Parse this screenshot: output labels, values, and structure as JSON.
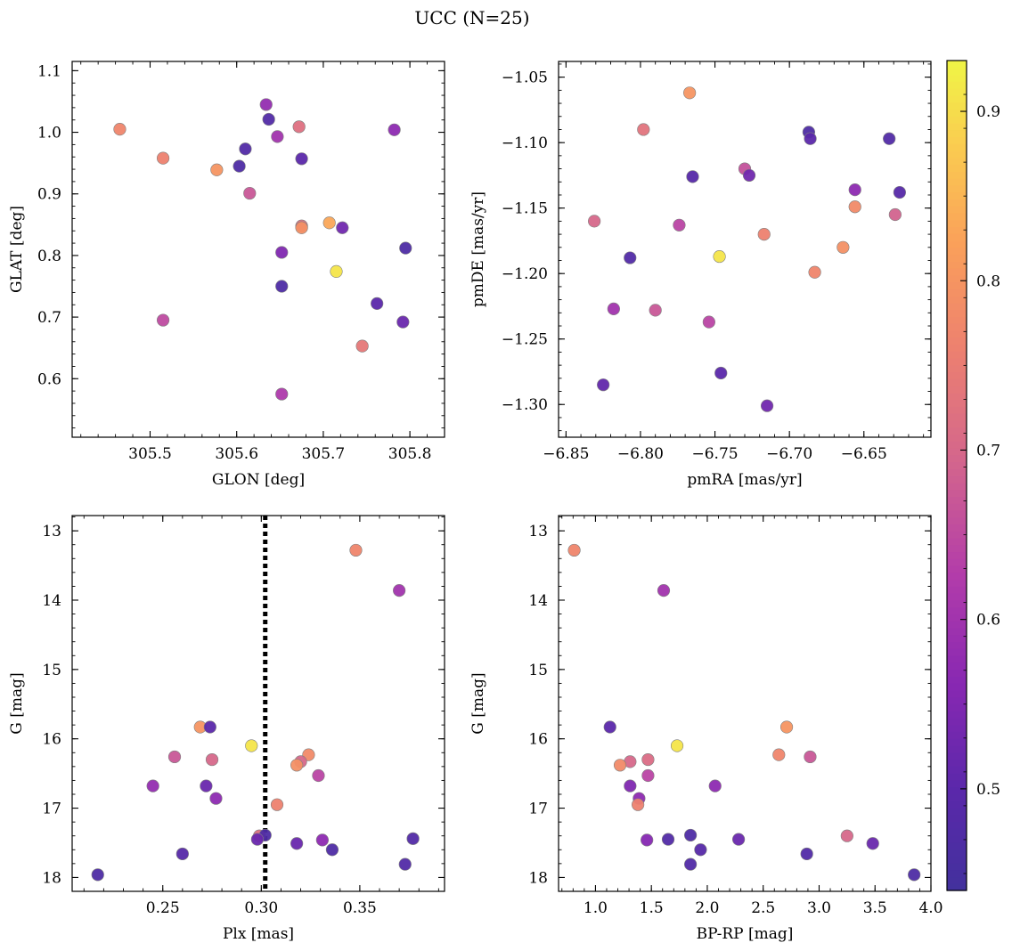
{
  "title": "UCC (N=25)",
  "colorbar": {
    "vmin": 0.44,
    "vmax": 0.93,
    "ticks": [
      0.5,
      0.6,
      0.7,
      0.8,
      0.9
    ],
    "tick_labels": [
      "0.5",
      "0.6",
      "0.7",
      "0.8",
      "0.9"
    ],
    "colormap": "plasma"
  },
  "chart_data": [
    {
      "type": "scatter",
      "xlabel": "GLON [deg]",
      "ylabel": "GLAT [deg]",
      "xlim": [
        305.41,
        305.84
      ],
      "ylim": [
        0.505,
        1.115
      ],
      "xticks": [
        305.5,
        305.6,
        305.7,
        305.8
      ],
      "xtick_labels": [
        "305.5",
        "305.6",
        "305.7",
        "305.8"
      ],
      "yticks": [
        0.6,
        0.7,
        0.8,
        0.9,
        1.0,
        1.1
      ],
      "ytick_labels": [
        "0.6",
        "0.7",
        "0.8",
        "0.9",
        "1.0",
        "1.1"
      ],
      "points": [
        {
          "x": 305.465,
          "y": 1.005,
          "c": 0.77
        },
        {
          "x": 305.515,
          "y": 0.958,
          "c": 0.76
        },
        {
          "x": 305.515,
          "y": 0.695,
          "c": 0.65
        },
        {
          "x": 305.577,
          "y": 0.939,
          "c": 0.8
        },
        {
          "x": 305.603,
          "y": 0.945,
          "c": 0.47
        },
        {
          "x": 305.61,
          "y": 0.973,
          "c": 0.48
        },
        {
          "x": 305.615,
          "y": 0.901,
          "c": 0.67
        },
        {
          "x": 305.634,
          "y": 1.045,
          "c": 0.58
        },
        {
          "x": 305.637,
          "y": 1.021,
          "c": 0.48
        },
        {
          "x": 305.647,
          "y": 0.993,
          "c": 0.6
        },
        {
          "x": 305.652,
          "y": 0.805,
          "c": 0.55
        },
        {
          "x": 305.652,
          "y": 0.75,
          "c": 0.47
        },
        {
          "x": 305.652,
          "y": 0.575,
          "c": 0.62
        },
        {
          "x": 305.672,
          "y": 1.009,
          "c": 0.72
        },
        {
          "x": 305.675,
          "y": 0.957,
          "c": 0.5
        },
        {
          "x": 305.675,
          "y": 0.848,
          "c": 0.72
        },
        {
          "x": 305.675,
          "y": 0.845,
          "c": 0.79
        },
        {
          "x": 305.707,
          "y": 0.853,
          "c": 0.83
        },
        {
          "x": 305.715,
          "y": 0.774,
          "c": 0.91
        },
        {
          "x": 305.722,
          "y": 0.845,
          "c": 0.53
        },
        {
          "x": 305.745,
          "y": 0.653,
          "c": 0.74
        },
        {
          "x": 305.762,
          "y": 0.722,
          "c": 0.5
        },
        {
          "x": 305.782,
          "y": 1.004,
          "c": 0.57
        },
        {
          "x": 305.792,
          "y": 0.692,
          "c": 0.52
        },
        {
          "x": 305.795,
          "y": 0.812,
          "c": 0.47
        }
      ]
    },
    {
      "type": "scatter",
      "xlabel": "pmRA [mas/yr]",
      "ylabel": "pmDE [mas/yr]",
      "xlim": [
        -6.855,
        -6.605
      ],
      "ylim": [
        -1.325,
        -1.038
      ],
      "xticks": [
        -6.85,
        -6.8,
        -6.75,
        -6.7,
        -6.65
      ],
      "xtick_labels": [
        "−6.85",
        "−6.80",
        "−6.75",
        "−6.70",
        "−6.65"
      ],
      "yticks": [
        -1.3,
        -1.25,
        -1.2,
        -1.15,
        -1.1,
        -1.05
      ],
      "ytick_labels": [
        "−1.30",
        "−1.25",
        "−1.20",
        "−1.15",
        "−1.10",
        "−1.05"
      ],
      "points": [
        {
          "x": -6.767,
          "y": -1.062,
          "c": 0.8
        },
        {
          "x": -6.798,
          "y": -1.09,
          "c": 0.73
        },
        {
          "x": -6.831,
          "y": -1.16,
          "c": 0.7
        },
        {
          "x": -6.807,
          "y": -1.188,
          "c": 0.48
        },
        {
          "x": -6.818,
          "y": -1.227,
          "c": 0.6
        },
        {
          "x": -6.825,
          "y": -1.285,
          "c": 0.51
        },
        {
          "x": -6.79,
          "y": -1.228,
          "c": 0.67
        },
        {
          "x": -6.774,
          "y": -1.163,
          "c": 0.64
        },
        {
          "x": -6.765,
          "y": -1.126,
          "c": 0.49
        },
        {
          "x": -6.754,
          "y": -1.237,
          "c": 0.64
        },
        {
          "x": -6.747,
          "y": -1.187,
          "c": 0.91
        },
        {
          "x": -6.746,
          "y": -1.276,
          "c": 0.5
        },
        {
          "x": -6.73,
          "y": -1.12,
          "c": 0.66
        },
        {
          "x": -6.727,
          "y": -1.125,
          "c": 0.53
        },
        {
          "x": -6.717,
          "y": -1.17,
          "c": 0.76
        },
        {
          "x": -6.715,
          "y": -1.301,
          "c": 0.53
        },
        {
          "x": -6.687,
          "y": -1.092,
          "c": 0.47
        },
        {
          "x": -6.686,
          "y": -1.097,
          "c": 0.5
        },
        {
          "x": -6.683,
          "y": -1.199,
          "c": 0.77
        },
        {
          "x": -6.664,
          "y": -1.18,
          "c": 0.79
        },
        {
          "x": -6.656,
          "y": -1.136,
          "c": 0.57
        },
        {
          "x": -6.656,
          "y": -1.149,
          "c": 0.78
        },
        {
          "x": -6.633,
          "y": -1.097,
          "c": 0.48
        },
        {
          "x": -6.629,
          "y": -1.155,
          "c": 0.69
        },
        {
          "x": -6.626,
          "y": -1.138,
          "c": 0.49
        }
      ]
    },
    {
      "type": "scatter",
      "xlabel": "Plx [mas]",
      "ylabel": "G [mag]",
      "xlim": [
        0.204,
        0.393
      ],
      "ylim": [
        18.2,
        12.78
      ],
      "y_inverted": true,
      "xticks": [
        0.25,
        0.3,
        0.35
      ],
      "xtick_labels": [
        "0.25",
        "0.30",
        "0.35"
      ],
      "yticks": [
        13,
        14,
        15,
        16,
        17,
        18
      ],
      "ytick_labels": [
        "13",
        "14",
        "15",
        "16",
        "17",
        "18"
      ],
      "vline": {
        "x": 0.302,
        "style": "dotted",
        "color": "#000000"
      },
      "points": [
        {
          "x": 0.348,
          "y": 13.28,
          "c": 0.77
        },
        {
          "x": 0.37,
          "y": 13.86,
          "c": 0.6
        },
        {
          "x": 0.269,
          "y": 15.83,
          "c": 0.8
        },
        {
          "x": 0.274,
          "y": 15.83,
          "c": 0.5
        },
        {
          "x": 0.295,
          "y": 16.1,
          "c": 0.91
        },
        {
          "x": 0.256,
          "y": 16.26,
          "c": 0.67
        },
        {
          "x": 0.275,
          "y": 16.3,
          "c": 0.7
        },
        {
          "x": 0.324,
          "y": 16.23,
          "c": 0.78
        },
        {
          "x": 0.32,
          "y": 16.33,
          "c": 0.7
        },
        {
          "x": 0.318,
          "y": 16.38,
          "c": 0.79
        },
        {
          "x": 0.329,
          "y": 16.53,
          "c": 0.64
        },
        {
          "x": 0.245,
          "y": 16.68,
          "c": 0.58
        },
        {
          "x": 0.272,
          "y": 16.68,
          "c": 0.52
        },
        {
          "x": 0.277,
          "y": 16.86,
          "c": 0.57
        },
        {
          "x": 0.308,
          "y": 16.95,
          "c": 0.76
        },
        {
          "x": 0.299,
          "y": 17.4,
          "c": 0.72
        },
        {
          "x": 0.302,
          "y": 17.39,
          "c": 0.47
        },
        {
          "x": 0.298,
          "y": 17.45,
          "c": 0.52
        },
        {
          "x": 0.318,
          "y": 17.51,
          "c": 0.52
        },
        {
          "x": 0.331,
          "y": 17.46,
          "c": 0.57
        },
        {
          "x": 0.377,
          "y": 17.44,
          "c": 0.48
        },
        {
          "x": 0.336,
          "y": 17.6,
          "c": 0.47
        },
        {
          "x": 0.26,
          "y": 17.66,
          "c": 0.49
        },
        {
          "x": 0.373,
          "y": 17.81,
          "c": 0.48
        },
        {
          "x": 0.217,
          "y": 17.96,
          "c": 0.47
        }
      ]
    },
    {
      "type": "scatter",
      "xlabel": "BP-RP [mag]",
      "ylabel": "G [mag]",
      "xlim": [
        0.67,
        4.0
      ],
      "ylim": [
        18.2,
        12.78
      ],
      "y_inverted": true,
      "xticks": [
        1.0,
        1.5,
        2.0,
        2.5,
        3.0,
        3.5,
        4.0
      ],
      "xtick_labels": [
        "1.0",
        "1.5",
        "2.0",
        "2.5",
        "3.0",
        "3.5",
        "4.0"
      ],
      "yticks": [
        13,
        14,
        15,
        16,
        17,
        18
      ],
      "ytick_labels": [
        "13",
        "14",
        "15",
        "16",
        "17",
        "18"
      ],
      "points": [
        {
          "x": 0.81,
          "y": 13.28,
          "c": 0.77
        },
        {
          "x": 1.61,
          "y": 13.86,
          "c": 0.6
        },
        {
          "x": 1.13,
          "y": 15.83,
          "c": 0.5
        },
        {
          "x": 2.71,
          "y": 15.83,
          "c": 0.8
        },
        {
          "x": 1.73,
          "y": 16.1,
          "c": 0.91
        },
        {
          "x": 2.64,
          "y": 16.23,
          "c": 0.77
        },
        {
          "x": 2.92,
          "y": 16.26,
          "c": 0.67
        },
        {
          "x": 1.47,
          "y": 16.3,
          "c": 0.71
        },
        {
          "x": 1.31,
          "y": 16.33,
          "c": 0.7
        },
        {
          "x": 1.22,
          "y": 16.38,
          "c": 0.78
        },
        {
          "x": 1.47,
          "y": 16.53,
          "c": 0.64
        },
        {
          "x": 1.31,
          "y": 16.68,
          "c": 0.55
        },
        {
          "x": 2.07,
          "y": 16.68,
          "c": 0.57
        },
        {
          "x": 1.39,
          "y": 16.86,
          "c": 0.57
        },
        {
          "x": 1.38,
          "y": 16.95,
          "c": 0.76
        },
        {
          "x": 1.85,
          "y": 17.39,
          "c": 0.47
        },
        {
          "x": 3.25,
          "y": 17.4,
          "c": 0.7
        },
        {
          "x": 1.46,
          "y": 17.46,
          "c": 0.56
        },
        {
          "x": 1.65,
          "y": 17.45,
          "c": 0.48
        },
        {
          "x": 2.28,
          "y": 17.45,
          "c": 0.52
        },
        {
          "x": 3.48,
          "y": 17.51,
          "c": 0.52
        },
        {
          "x": 1.94,
          "y": 17.6,
          "c": 0.49
        },
        {
          "x": 2.89,
          "y": 17.66,
          "c": 0.48
        },
        {
          "x": 1.85,
          "y": 17.81,
          "c": 0.48
        },
        {
          "x": 3.85,
          "y": 17.96,
          "c": 0.47
        }
      ]
    }
  ]
}
